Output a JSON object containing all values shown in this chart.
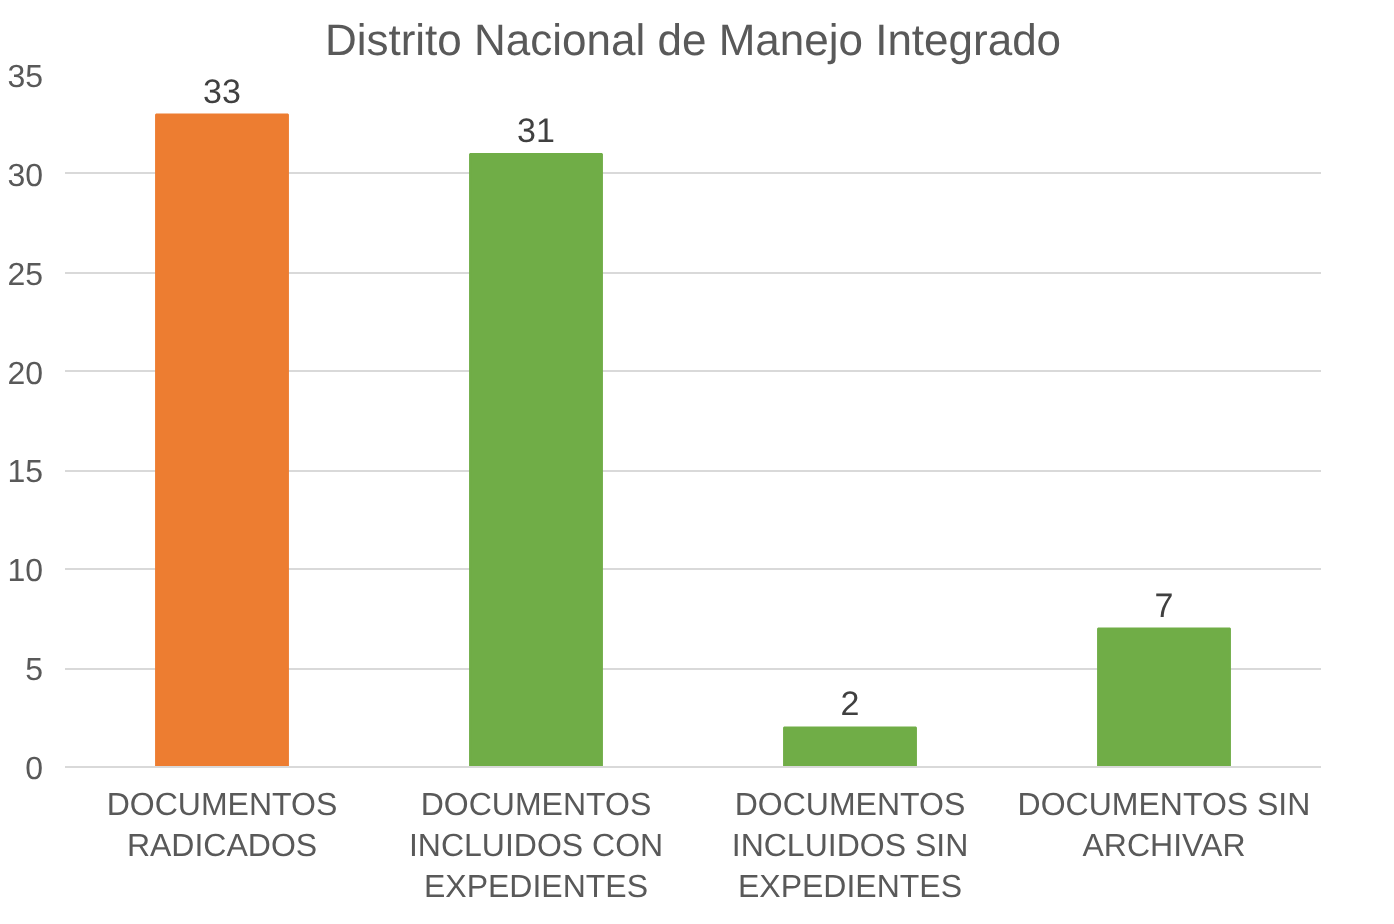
{
  "chart_data": {
    "type": "bar",
    "title": "Distrito Nacional de Manejo Integrado",
    "categories": [
      "DOCUMENTOS RADICADOS",
      "DOCUMENTOS INCLUIDOS CON EXPEDIENTES",
      "DOCUMENTOS INCLUIDOS SIN EXPEDIENTES",
      "DOCUMENTOS SIN ARCHIVAR"
    ],
    "values": [
      33,
      31,
      2,
      7
    ],
    "colors": [
      "#ed7d31",
      "#70ad47",
      "#70ad47",
      "#70ad47"
    ],
    "ylim": [
      0,
      35
    ],
    "yticks": [
      0,
      5,
      10,
      15,
      20,
      25,
      30,
      35
    ],
    "grid": "y",
    "data_labels": true
  }
}
